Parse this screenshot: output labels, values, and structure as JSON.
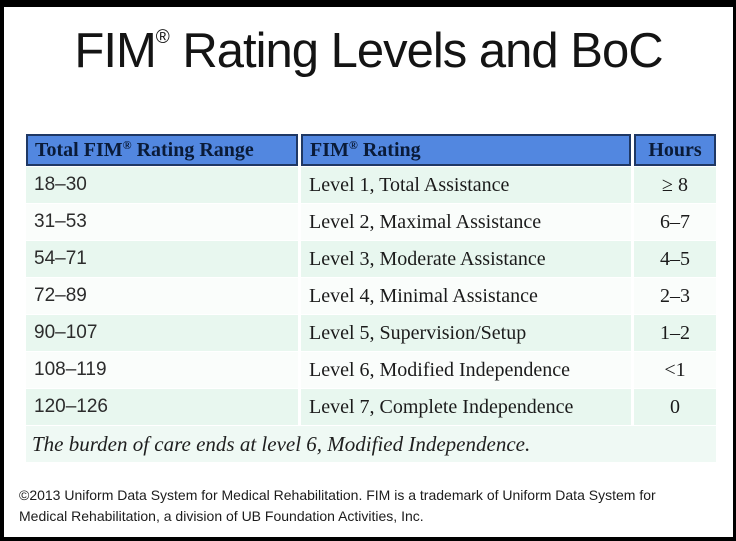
{
  "title": {
    "fim": "FIM",
    "reg": "®",
    "rest": " Rating Levels and BoC"
  },
  "table": {
    "header": {
      "col1_pre": "Total FIM",
      "col1_reg": "®",
      "col1_post": " Rating Range",
      "col2_pre": "FIM",
      "col2_reg": "®",
      "col2_post": " Rating",
      "col3": "Hours"
    },
    "rows": [
      {
        "range": "18–30",
        "rating": "Level 1, Total Assistance",
        "hours": "≥ 8"
      },
      {
        "range": "31–53",
        "rating": "Level 2, Maximal Assistance",
        "hours": "6–7"
      },
      {
        "range": "54–71",
        "rating": "Level 3, Moderate Assistance",
        "hours": "4–5"
      },
      {
        "range": "72–89",
        "rating": "Level 4, Minimal Assistance",
        "hours": "2–3"
      },
      {
        "range": "90–107",
        "rating": "Level 5, Supervision/Setup",
        "hours": "1–2"
      },
      {
        "range": "108–119",
        "rating": "Level 6, Modified Independence",
        "hours": "<1"
      },
      {
        "range": "120–126",
        "rating": "Level 7, Complete Independence",
        "hours": "0"
      }
    ],
    "note": "The burden of care ends at level 6, Modified Independence."
  },
  "footer": {
    "line1": "©2013 Uniform Data System for Medical Rehabilitation. FIM is a trademark of Uniform Data System for",
    "line2": "Medical Rehabilitation, a division of UB Foundation Activities, Inc."
  },
  "colors": {
    "header_bg": "#5287e0",
    "header_border": "#1f3864",
    "header_text": "#0a1b38",
    "row_odd": "#e8f7ef",
    "row_even": "#fafdfb",
    "note_bg": "#eff9f4"
  }
}
